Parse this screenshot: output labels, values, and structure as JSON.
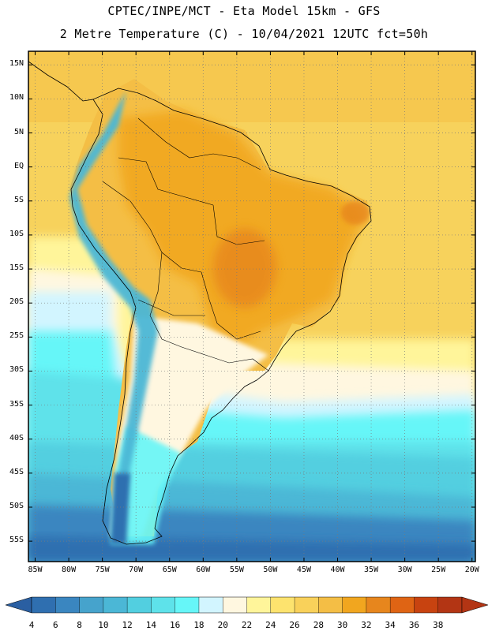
{
  "title_line1": "CPTEC/INPE/MCT -  Eta Model 15km - GFS",
  "title_line2": "2 Metre Temperature (C) - 10/04/2021 12UTC fct=50h",
  "chart_data": {
    "type": "heatmap",
    "variable": "2 Metre Temperature",
    "units": "C",
    "model": "Eta Model 15km - GFS",
    "lon_range": [
      -86,
      -19.5
    ],
    "lat_range": [
      -58,
      17
    ],
    "lat_ticks": [
      "15N",
      "10N",
      "5N",
      "EQ",
      "5S",
      "10S",
      "15S",
      "20S",
      "25S",
      "30S",
      "35S",
      "40S",
      "45S",
      "50S",
      "55S"
    ],
    "lat_values": [
      15,
      10,
      5,
      0,
      -5,
      -10,
      -15,
      -20,
      -25,
      -30,
      -35,
      -40,
      -45,
      -50,
      -55
    ],
    "lon_ticks": [
      "85W",
      "80W",
      "75W",
      "70W",
      "65W",
      "60W",
      "55W",
      "50W",
      "45W",
      "40W",
      "35W",
      "30W",
      "25W",
      "20W"
    ],
    "lon_values": [
      -85,
      -80,
      -75,
      -70,
      -65,
      -60,
      -55,
      -50,
      -45,
      -40,
      -35,
      -30,
      -25,
      -20
    ],
    "colorbar_labels": [
      "4",
      "6",
      "8",
      "10",
      "12",
      "14",
      "16",
      "18",
      "20",
      "22",
      "24",
      "26",
      "28",
      "30",
      "32",
      "34",
      "36",
      "38"
    ],
    "colorbar_colors": [
      "#2f6fb0",
      "#3a86c0",
      "#46a3cc",
      "#4bb7d6",
      "#52cfe0",
      "#5ee2ea",
      "#66f6f8",
      "#d2f5ff",
      "#fff7e0",
      "#fff59a",
      "#fde36e",
      "#f9d15a",
      "#f4be45",
      "#f1a61f",
      "#e7861d",
      "#df6414",
      "#c84310",
      "#b33514"
    ],
    "colorbar_under_color": "#2a5fa2",
    "colorbar_over_color": "#b33514"
  }
}
